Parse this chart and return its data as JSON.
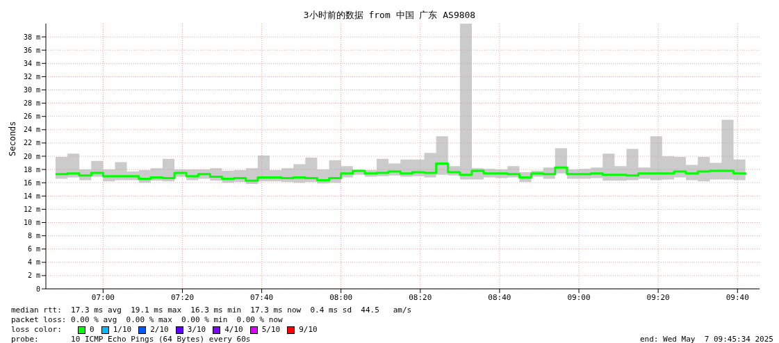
{
  "chart_data": {
    "type": "step",
    "title": "3小时前的数据 from 中国 广东 AS9808",
    "ylabel": "Seconds",
    "legend_title": "loss color:",
    "legend": "bottom",
    "grid": true,
    "xlim": [
      6.7594,
      9.7594
    ],
    "xticks": [
      {
        "value": 7,
        "label": "07:00"
      },
      {
        "value": 7.3333,
        "label": "07:20"
      },
      {
        "value": 7.6667,
        "label": "07:40"
      },
      {
        "value": 8,
        "label": "08:00"
      },
      {
        "value": 8.3333,
        "label": "08:20"
      },
      {
        "value": 8.6667,
        "label": "08:40"
      },
      {
        "value": 9,
        "label": "09:00"
      },
      {
        "value": 9.3333,
        "label": "09:20"
      },
      {
        "value": 9.6667,
        "label": "09:40"
      }
    ],
    "ylim": [
      0,
      40
    ],
    "yticks": [
      0,
      {
        "value": 2,
        "label": "2 m"
      },
      {
        "value": 4,
        "label": "4 m"
      },
      {
        "value": 6,
        "label": "6 m"
      },
      {
        "value": 8,
        "label": "8 m"
      },
      {
        "value": 10,
        "label": "10 m"
      },
      {
        "value": 12,
        "label": "12 m"
      },
      {
        "value": 14,
        "label": "14 m"
      },
      {
        "value": 16,
        "label": "16 m"
      },
      {
        "value": 18,
        "label": "18 m"
      },
      {
        "value": 20,
        "label": "20 m"
      },
      {
        "value": 22,
        "label": "22 m"
      },
      {
        "value": 24,
        "label": "24 m"
      },
      {
        "value": 26,
        "label": "26 m"
      },
      {
        "value": 28,
        "label": "28 m"
      },
      {
        "value": 30,
        "label": "30 m"
      },
      {
        "value": 32,
        "label": "32 m"
      },
      {
        "value": 34,
        "label": "34 m"
      },
      {
        "value": 36,
        "label": "36 m"
      },
      {
        "value": 38,
        "label": "38 m"
      }
    ],
    "series": [
      {
        "name": "0",
        "color": "#00ff00",
        "x": [
          6.8,
          6.85,
          6.9,
          6.95,
          7,
          7.05,
          7.1,
          7.15,
          7.2,
          7.25,
          7.3,
          7.35,
          7.4,
          7.45,
          7.5,
          7.55,
          7.6,
          7.65,
          7.7,
          7.75,
          7.8,
          7.85,
          7.9,
          7.95,
          8,
          8.05,
          8.1,
          8.15,
          8.2,
          8.25,
          8.3,
          8.35,
          8.4,
          8.45,
          8.5,
          8.55,
          8.6,
          8.65,
          8.7,
          8.75,
          8.8,
          8.85,
          8.9,
          8.95,
          9,
          9.05,
          9.1,
          9.15,
          9.2,
          9.25,
          9.3,
          9.35,
          9.4,
          9.45,
          9.5,
          9.55,
          9.6,
          9.65,
          9.7
        ],
        "values": [
          17.3,
          17.4,
          17.1,
          17.5,
          17.0,
          17.0,
          17.0,
          16.6,
          16.8,
          16.7,
          17.5,
          17.0,
          17.3,
          16.9,
          16.6,
          16.7,
          16.3,
          16.8,
          16.8,
          16.7,
          16.8,
          16.7,
          16.4,
          16.7,
          17.4,
          17.8,
          17.4,
          17.5,
          17.7,
          17.4,
          17.6,
          17.5,
          18.9,
          17.6,
          17.2,
          17.8,
          17.4,
          17.4,
          17.3,
          16.8,
          17.4,
          17.3,
          18.3,
          17.3,
          17.3,
          17.4,
          17.2,
          17.2,
          17.1,
          17.4,
          17.4,
          17.4,
          17.7,
          17.4,
          17.7,
          17.8,
          17.8,
          17.4,
          17.2
        ],
        "lower": [
          16.6,
          16.8,
          16.4,
          16.9,
          16.2,
          16.4,
          16.4,
          16.0,
          16.3,
          16.2,
          16.9,
          16.4,
          16.6,
          16.3,
          16.0,
          16.1,
          15.8,
          16.2,
          16.2,
          16.1,
          16.0,
          16.1,
          15.9,
          16.0,
          16.8,
          17.2,
          16.9,
          17.0,
          17.1,
          16.9,
          17.0,
          16.8,
          17.2,
          17.1,
          16.5,
          16.5,
          16.8,
          16.7,
          16.8,
          16.1,
          16.9,
          16.6,
          17.4,
          16.6,
          16.6,
          16.7,
          16.3,
          16.3,
          16.4,
          16.6,
          16.4,
          16.5,
          16.8,
          16.4,
          16.2,
          16.5,
          16.5,
          16.4,
          16.7
        ],
        "upper": [
          19.9,
          20.4,
          18.0,
          19.3,
          18.0,
          19.1,
          17.7,
          17.9,
          18.2,
          19.6,
          18.0,
          18.0,
          18.0,
          18.2,
          17.8,
          17.9,
          18.2,
          20.1,
          17.9,
          18.2,
          18.8,
          19.8,
          18.0,
          19.4,
          18.5,
          17.9,
          17.9,
          19.6,
          18.9,
          19.5,
          19.5,
          20.5,
          23.0,
          18.5,
          40,
          18.2,
          18.1,
          18.0,
          18.5,
          17.6,
          17.8,
          18.3,
          21.2,
          18.0,
          18.1,
          18.3,
          20.4,
          18.5,
          21.1,
          18.3,
          23.0,
          20.0,
          19.9,
          18.7,
          19.9,
          19.0,
          25.5,
          19.5,
          18.0
        ]
      },
      {
        "name": "1/10",
        "color": "#00b8ff"
      },
      {
        "name": "2/10",
        "color": "#0059ff"
      },
      {
        "name": "3/10",
        "color": "#5e00ff"
      },
      {
        "name": "4/10",
        "color": "#7e00ff"
      },
      {
        "name": "5/10",
        "color": "#dd00ff"
      },
      {
        "name": "9/10",
        "color": "#ff0000"
      }
    ],
    "annotations": [
      "median rtt:  17.3 ms avg  19.1 ms max  16.3 ms min  17.3 ms now  0.4 ms sd  44.5   am/s",
      "packet loss: 0.00 % avg  0.00 % max  0.00 % min  0.00 % now",
      "probe:       10 ICMP Echo Pings (64 Bytes) every 60s",
      "end: Wed May  7 09:45:34 2025"
    ]
  }
}
